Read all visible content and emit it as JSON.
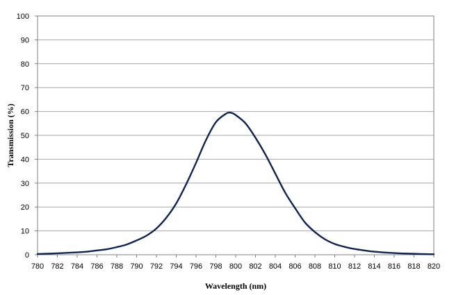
{
  "chart_data": {
    "type": "line",
    "title": "",
    "xlabel": "Wavelength (nm)",
    "ylabel": "Transmission (%)",
    "xlim": [
      780,
      820
    ],
    "ylim": [
      0,
      100
    ],
    "x_ticks": [
      780,
      782,
      784,
      786,
      788,
      790,
      792,
      794,
      796,
      798,
      800,
      802,
      804,
      806,
      808,
      810,
      812,
      814,
      816,
      818,
      820
    ],
    "y_ticks": [
      0,
      10,
      20,
      30,
      40,
      50,
      60,
      70,
      80,
      90,
      100
    ],
    "grid": "horizontal",
    "legend": "none",
    "line_color": "#0d2350",
    "series": [
      {
        "x": [
          780,
          782,
          784,
          785,
          786,
          787,
          788,
          789,
          790,
          791,
          792,
          793,
          794,
          795,
          796,
          797,
          798,
          799,
          799.5,
          800,
          801,
          802,
          803,
          804,
          805,
          806,
          807,
          808,
          809,
          810,
          811,
          812,
          813,
          814,
          816,
          818,
          820
        ],
        "y": [
          0.3,
          0.6,
          1.0,
          1.3,
          1.8,
          2.3,
          3.2,
          4.3,
          6.0,
          8.0,
          11.0,
          15.5,
          21.5,
          29.5,
          38.5,
          48.0,
          55.5,
          59.0,
          59.5,
          58.5,
          55.0,
          49.0,
          42.0,
          34.0,
          26.0,
          19.5,
          13.5,
          9.5,
          6.5,
          4.5,
          3.3,
          2.4,
          1.8,
          1.3,
          0.7,
          0.4,
          0.2
        ]
      }
    ]
  }
}
